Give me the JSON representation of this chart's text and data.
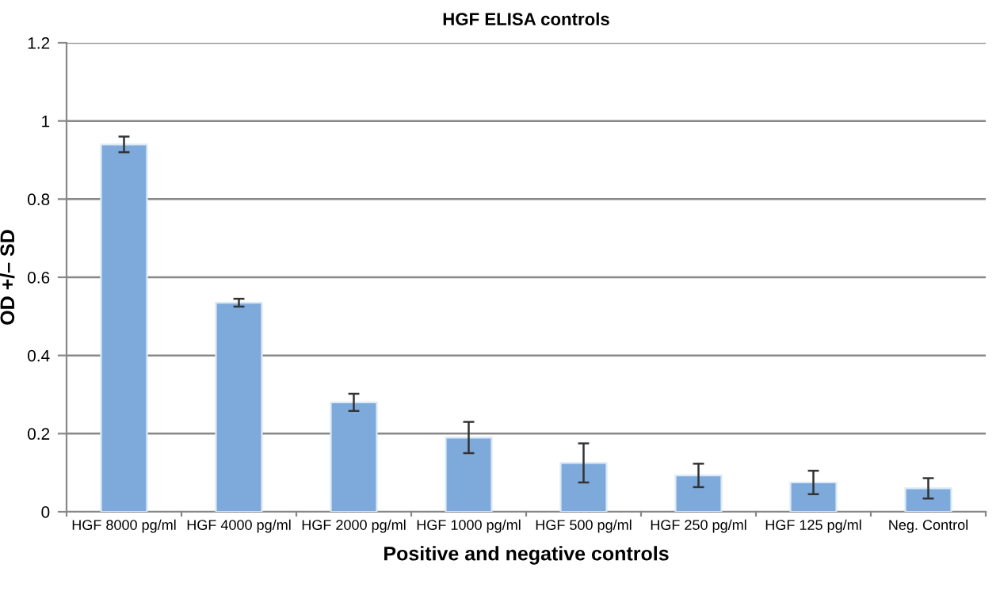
{
  "chart_data": {
    "type": "bar",
    "title": "HGF ELISA controls",
    "xlabel": "Positive and negative controls",
    "ylabel": "OD +/– SD",
    "categories": [
      "HGF 8000 pg/ml",
      "HGF 4000 pg/ml",
      "HGF 2000 pg/ml",
      "HGF 1000 pg/ml",
      "HGF 500 pg/ml",
      "HGF 250 pg/ml",
      "HGF 125 pg/ml",
      "Neg. Control"
    ],
    "values": [
      0.94,
      0.535,
      0.28,
      0.19,
      0.125,
      0.093,
      0.075,
      0.06
    ],
    "errors": [
      0.02,
      0.01,
      0.022,
      0.04,
      0.05,
      0.03,
      0.03,
      0.026
    ],
    "color": "#7eaadb",
    "ylim": [
      0,
      1.2
    ],
    "yticks": [
      0,
      0.2,
      0.4,
      0.6,
      0.8,
      1,
      1.2
    ],
    "grid": "y"
  }
}
